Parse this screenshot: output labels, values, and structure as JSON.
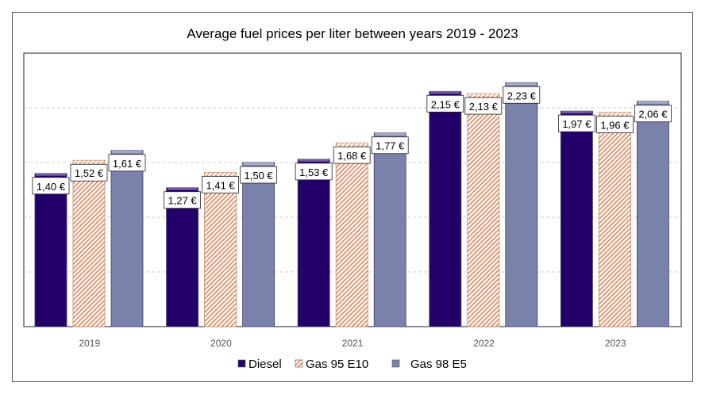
{
  "chart_data": {
    "type": "bar",
    "title": "Average fuel prices per liter between years 2019 - 2023",
    "categories": [
      "2019",
      "2020",
      "2021",
      "2022",
      "2023"
    ],
    "series": [
      {
        "name": "Diesel",
        "values": [
          1.4,
          1.27,
          1.53,
          2.15,
          1.97
        ],
        "labels": [
          "1,40 €",
          "1,27 €",
          "1,53 €",
          "2,15 €",
          "1,97 €"
        ],
        "color": "#24006b",
        "pattern": "solid"
      },
      {
        "name": "Gas 95 E10",
        "values": [
          1.52,
          1.41,
          1.68,
          2.13,
          1.96
        ],
        "labels": [
          "1,52 €",
          "1,41 €",
          "1,68 €",
          "2,13 €",
          "1,96 €"
        ],
        "color": "#e0906a",
        "pattern": "diagonal-hatch"
      },
      {
        "name": "Gas 98 E5",
        "values": [
          1.61,
          1.5,
          1.77,
          2.23,
          2.06
        ],
        "labels": [
          "1,61 €",
          "1,50 €",
          "1,77 €",
          "2,23 €",
          "2,06 €"
        ],
        "color": "#7a82ab",
        "pattern": "solid"
      }
    ],
    "ylim": [
      0,
      2.5
    ],
    "grid": "horizontal dashed",
    "y_tick_labels": "hidden",
    "legend": "bottom"
  }
}
